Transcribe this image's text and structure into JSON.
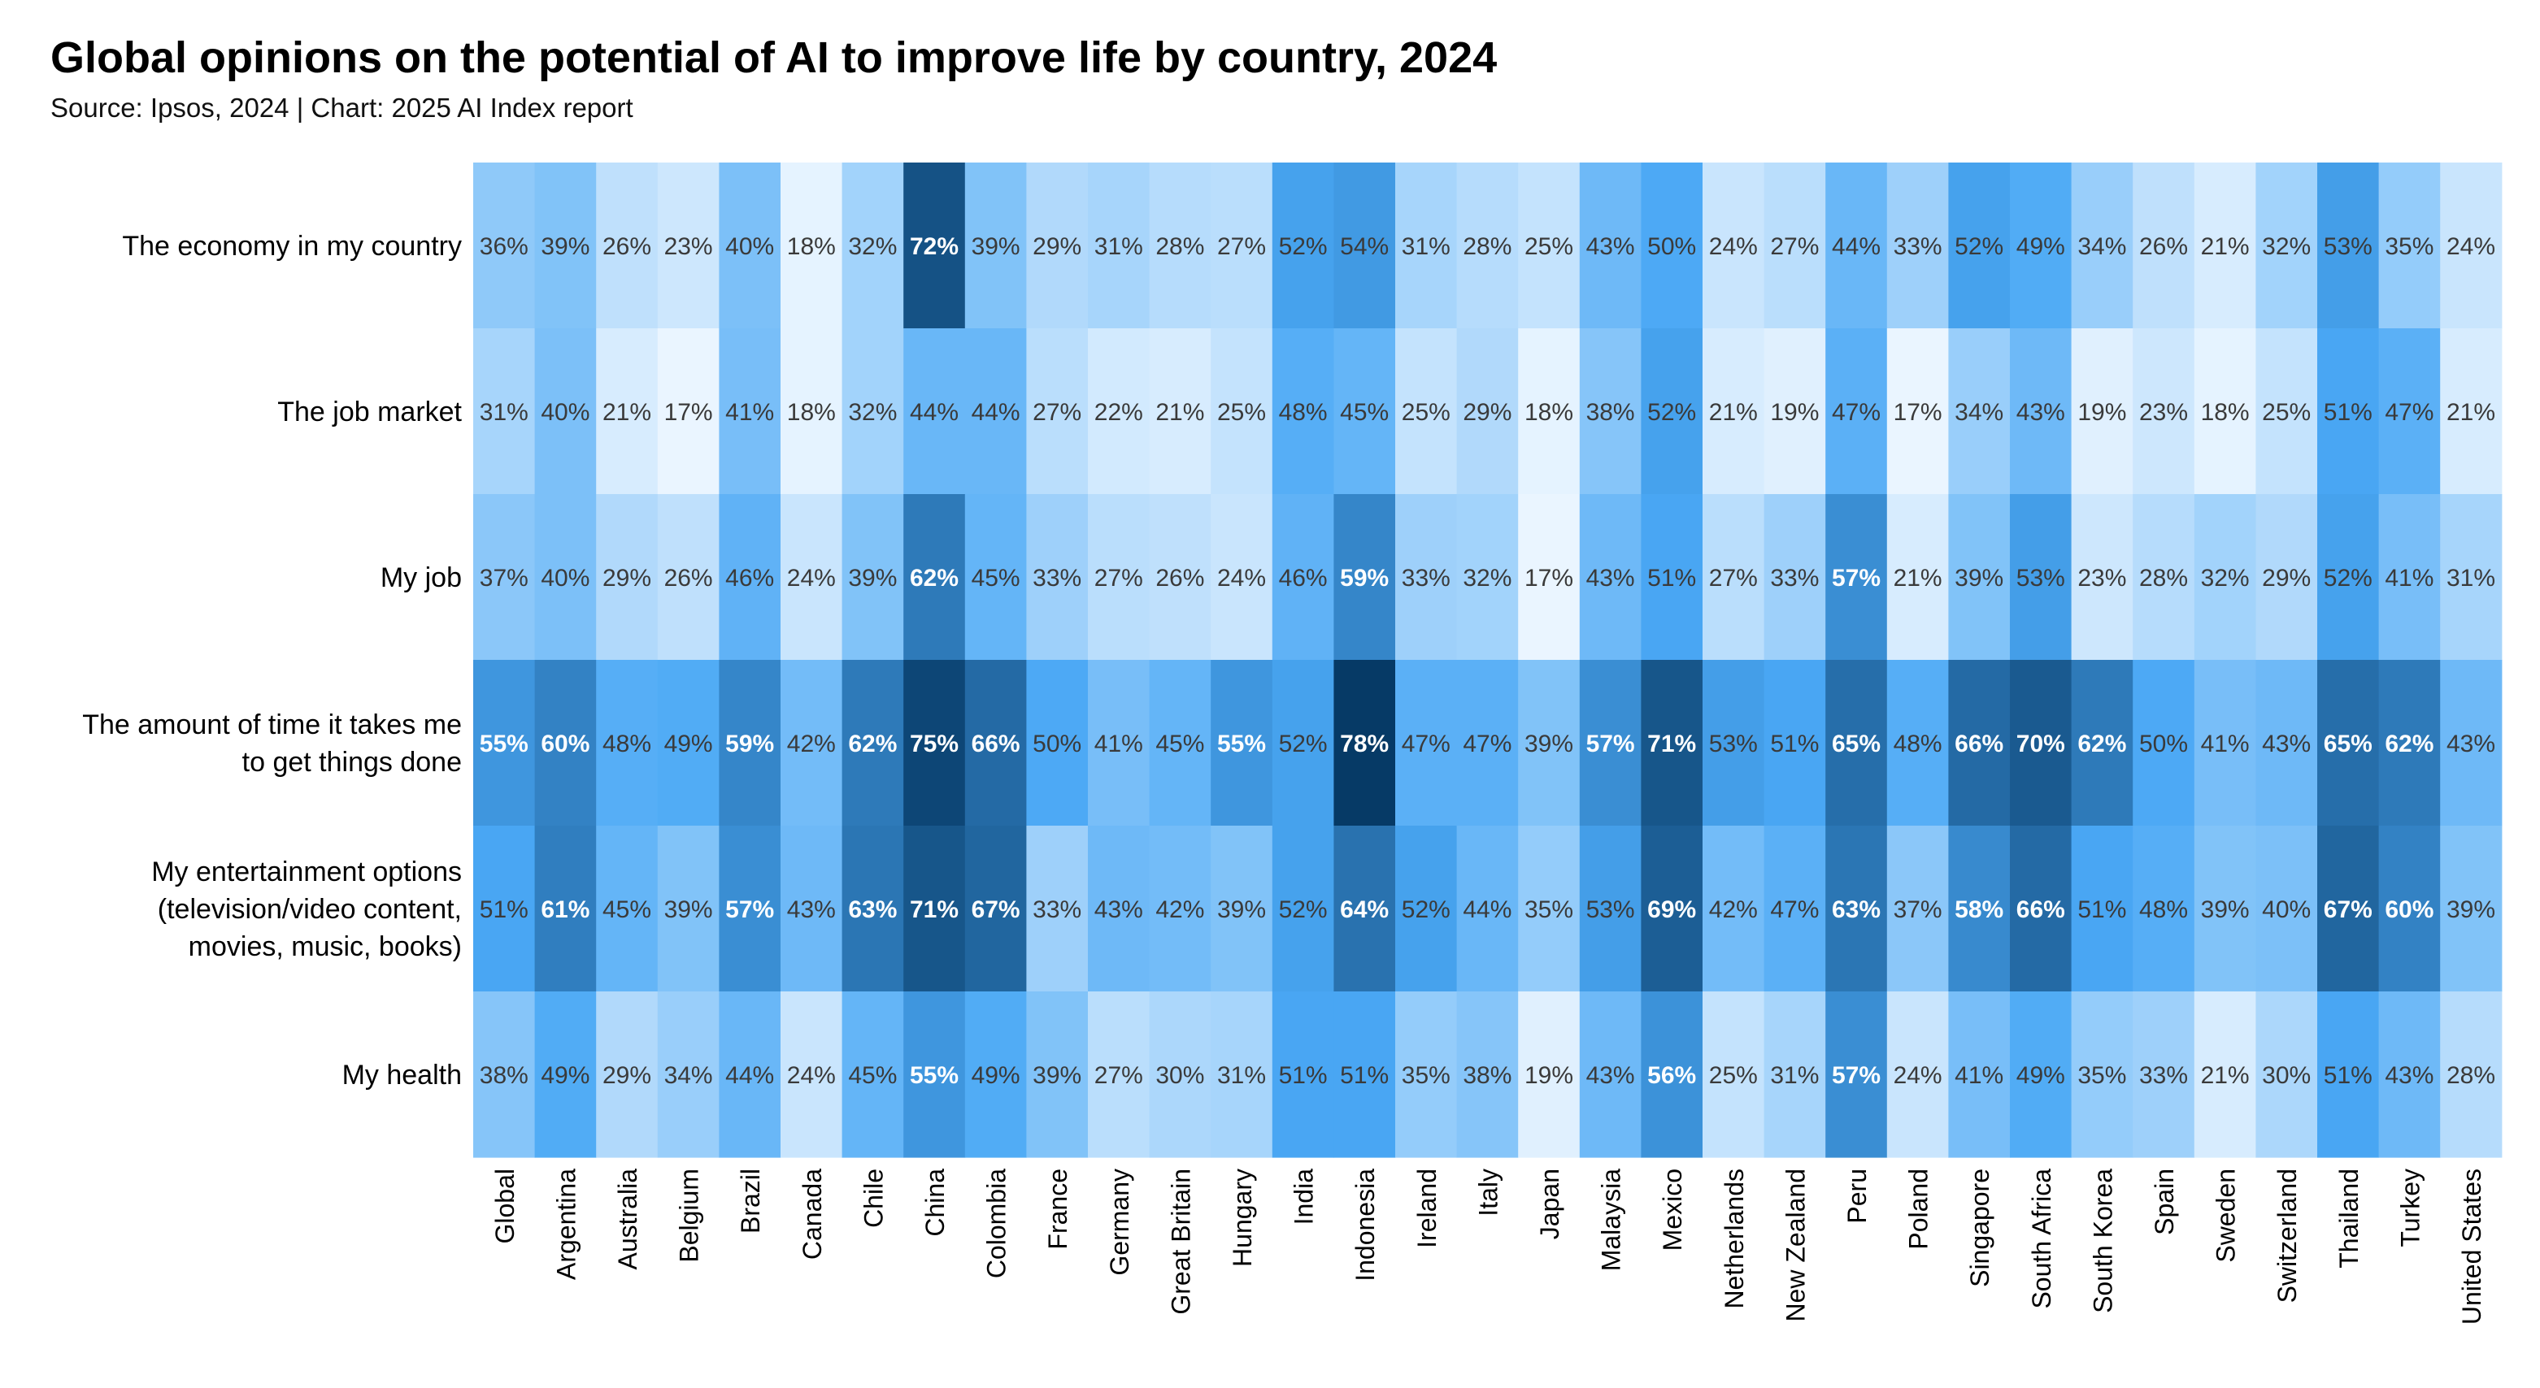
{
  "chart_data": {
    "type": "heatmap",
    "title": "Global opinions on the potential of AI to improve life by country, 2024",
    "subtitle": "Source: Ipsos, 2024 | Chart: 2025 AI Index report",
    "value_suffix": "%",
    "color_range": [
      17,
      78
    ],
    "colors": {
      "low": "#eaf5ff",
      "mid": "#4aa8f5",
      "high": "#063a66",
      "text_dark": "#3a3a3a",
      "text_light": "#ffffff"
    },
    "columns": [
      "Global",
      "Argentina",
      "Australia",
      "Belgium",
      "Brazil",
      "Canada",
      "Chile",
      "China",
      "Colombia",
      "France",
      "Germany",
      "Great Britain",
      "Hungary",
      "India",
      "Indonesia",
      "Ireland",
      "Italy",
      "Japan",
      "Malaysia",
      "Mexico",
      "Netherlands",
      "New Zealand",
      "Peru",
      "Poland",
      "Singapore",
      "South Africa",
      "South Korea",
      "Spain",
      "Sweden",
      "Switzerland",
      "Thailand",
      "Turkey",
      "United States"
    ],
    "rows": [
      {
        "label_lines": [
          "The economy in my country"
        ],
        "values": [
          36,
          39,
          26,
          23,
          40,
          18,
          32,
          72,
          39,
          29,
          31,
          28,
          27,
          52,
          54,
          31,
          28,
          25,
          43,
          50,
          24,
          27,
          44,
          33,
          52,
          49,
          34,
          26,
          21,
          32,
          53,
          35,
          24
        ]
      },
      {
        "label_lines": [
          "The job market"
        ],
        "values": [
          31,
          40,
          21,
          17,
          41,
          18,
          32,
          44,
          44,
          27,
          22,
          21,
          25,
          48,
          45,
          25,
          29,
          18,
          38,
          52,
          21,
          19,
          47,
          17,
          34,
          43,
          19,
          23,
          18,
          25,
          51,
          47,
          21
        ]
      },
      {
        "label_lines": [
          "My job"
        ],
        "values": [
          37,
          40,
          29,
          26,
          46,
          24,
          39,
          62,
          45,
          33,
          27,
          26,
          24,
          46,
          59,
          33,
          32,
          17,
          43,
          51,
          27,
          33,
          57,
          21,
          39,
          53,
          23,
          28,
          32,
          29,
          52,
          41,
          31
        ]
      },
      {
        "label_lines": [
          "The amount of time it takes me",
          "to get things done"
        ],
        "values": [
          55,
          60,
          48,
          49,
          59,
          42,
          62,
          75,
          66,
          50,
          41,
          45,
          55,
          52,
          78,
          47,
          47,
          39,
          57,
          71,
          53,
          51,
          65,
          48,
          66,
          70,
          62,
          50,
          41,
          43,
          65,
          62,
          43
        ]
      },
      {
        "label_lines": [
          "My entertainment options",
          "(television/video content,",
          "movies, music, books)"
        ],
        "values": [
          51,
          61,
          45,
          39,
          57,
          43,
          63,
          71,
          67,
          33,
          43,
          42,
          39,
          52,
          64,
          52,
          44,
          35,
          53,
          69,
          42,
          47,
          63,
          37,
          58,
          66,
          51,
          48,
          39,
          40,
          67,
          60,
          39
        ]
      },
      {
        "label_lines": [
          "My health"
        ],
        "values": [
          38,
          49,
          29,
          34,
          44,
          24,
          45,
          55,
          49,
          39,
          27,
          30,
          31,
          51,
          51,
          35,
          38,
          19,
          43,
          56,
          25,
          31,
          57,
          24,
          41,
          49,
          35,
          33,
          21,
          30,
          51,
          43,
          28
        ]
      }
    ]
  }
}
